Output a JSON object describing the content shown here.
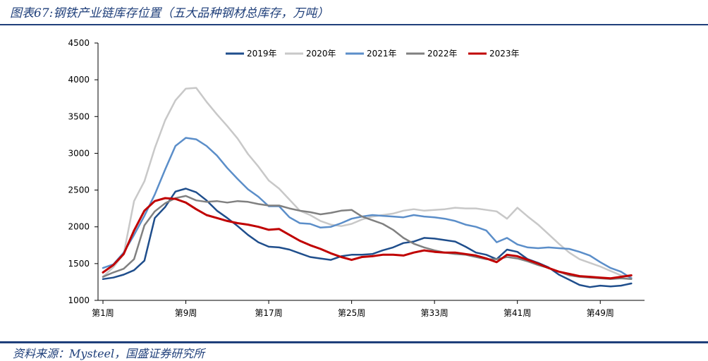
{
  "header": {
    "title": "图表67:钢铁产业链库存位置（五大品种钢材总库存，万吨）"
  },
  "footer": {
    "source": "资料来源：Mysteel，国盛证券研究所"
  },
  "colors": {
    "accent": "#1f3f7a"
  },
  "chart_data": {
    "type": "line",
    "title": "",
    "xlabel": "",
    "ylabel": "",
    "ylim": [
      1000,
      4500
    ],
    "yticks": [
      1000,
      1500,
      2000,
      2500,
      3000,
      3500,
      4000,
      4500
    ],
    "xlim": [
      1,
      52
    ],
    "xticks": [
      {
        "week": 1,
        "label": "第1周"
      },
      {
        "week": 9,
        "label": "第9周"
      },
      {
        "week": 17,
        "label": "第17周"
      },
      {
        "week": 25,
        "label": "第25周"
      },
      {
        "week": 33,
        "label": "第33周"
      },
      {
        "week": 41,
        "label": "第41周"
      },
      {
        "week": 49,
        "label": "第49周"
      }
    ],
    "legend_position": "top",
    "grid": false,
    "series": [
      {
        "name": "2019年",
        "color": "#1f4e8c",
        "width": 2.5,
        "values": [
          1290,
          1310,
          1350,
          1410,
          1540,
          2120,
          2270,
          2480,
          2520,
          2470,
          2360,
          2220,
          2120,
          2010,
          1890,
          1790,
          1730,
          1720,
          1690,
          1640,
          1590,
          1570,
          1550,
          1600,
          1620,
          1620,
          1630,
          1680,
          1720,
          1780,
          1800,
          1850,
          1840,
          1820,
          1800,
          1730,
          1650,
          1620,
          1560,
          1690,
          1660,
          1560,
          1510,
          1450,
          1350,
          1280,
          1210,
          1180,
          1200,
          1190,
          1200,
          1230
        ]
      },
      {
        "name": "2020年",
        "color": "#c8c8c8",
        "width": 2.5,
        "values": [
          1320,
          1450,
          1630,
          2350,
          2620,
          3070,
          3450,
          3720,
          3880,
          3890,
          3700,
          3530,
          3370,
          3200,
          2990,
          2820,
          2630,
          2520,
          2370,
          2220,
          2160,
          2080,
          2030,
          2010,
          2040,
          2100,
          2140,
          2160,
          2180,
          2220,
          2240,
          2220,
          2230,
          2240,
          2260,
          2250,
          2250,
          2230,
          2210,
          2110,
          2260,
          2140,
          2030,
          1900,
          1770,
          1650,
          1560,
          1510,
          1460,
          1400,
          1340,
          1310
        ]
      },
      {
        "name": "2021年",
        "color": "#5b8ec9",
        "width": 2.5,
        "values": [
          1440,
          1490,
          1650,
          1890,
          2150,
          2440,
          2780,
          3100,
          3210,
          3190,
          3100,
          2970,
          2800,
          2650,
          2510,
          2410,
          2280,
          2280,
          2130,
          2050,
          2040,
          1990,
          2000,
          2050,
          2110,
          2140,
          2160,
          2150,
          2140,
          2130,
          2160,
          2140,
          2130,
          2110,
          2080,
          2030,
          2000,
          1950,
          1790,
          1850,
          1760,
          1720,
          1710,
          1720,
          1710,
          1700,
          1660,
          1610,
          1520,
          1440,
          1390,
          1300
        ]
      },
      {
        "name": "2022年",
        "color": "#808080",
        "width": 2.5,
        "values": [
          1320,
          1380,
          1430,
          1560,
          2020,
          2210,
          2320,
          2390,
          2420,
          2360,
          2340,
          2350,
          2330,
          2350,
          2340,
          2310,
          2290,
          2290,
          2250,
          2220,
          2200,
          2170,
          2190,
          2220,
          2230,
          2140,
          2090,
          2040,
          1960,
          1850,
          1770,
          1720,
          1680,
          1650,
          1630,
          1620,
          1590,
          1560,
          1560,
          1590,
          1570,
          1530,
          1480,
          1440,
          1390,
          1340,
          1320,
          1310,
          1300,
          1290,
          1300,
          1290
        ]
      },
      {
        "name": "2023年",
        "color": "#c00000",
        "width": 3,
        "values": [
          1380,
          1480,
          1630,
          1950,
          2220,
          2350,
          2390,
          2380,
          2330,
          2240,
          2160,
          2120,
          2080,
          2050,
          2030,
          2000,
          1960,
          1970,
          1890,
          1810,
          1750,
          1700,
          1640,
          1590,
          1550,
          1590,
          1600,
          1620,
          1620,
          1610,
          1650,
          1680,
          1660,
          1650,
          1650,
          1630,
          1610,
          1570,
          1520,
          1620,
          1600,
          1550,
          1500,
          1440,
          1390,
          1360,
          1330,
          1320,
          1310,
          1300,
          1320,
          1340
        ]
      }
    ]
  }
}
